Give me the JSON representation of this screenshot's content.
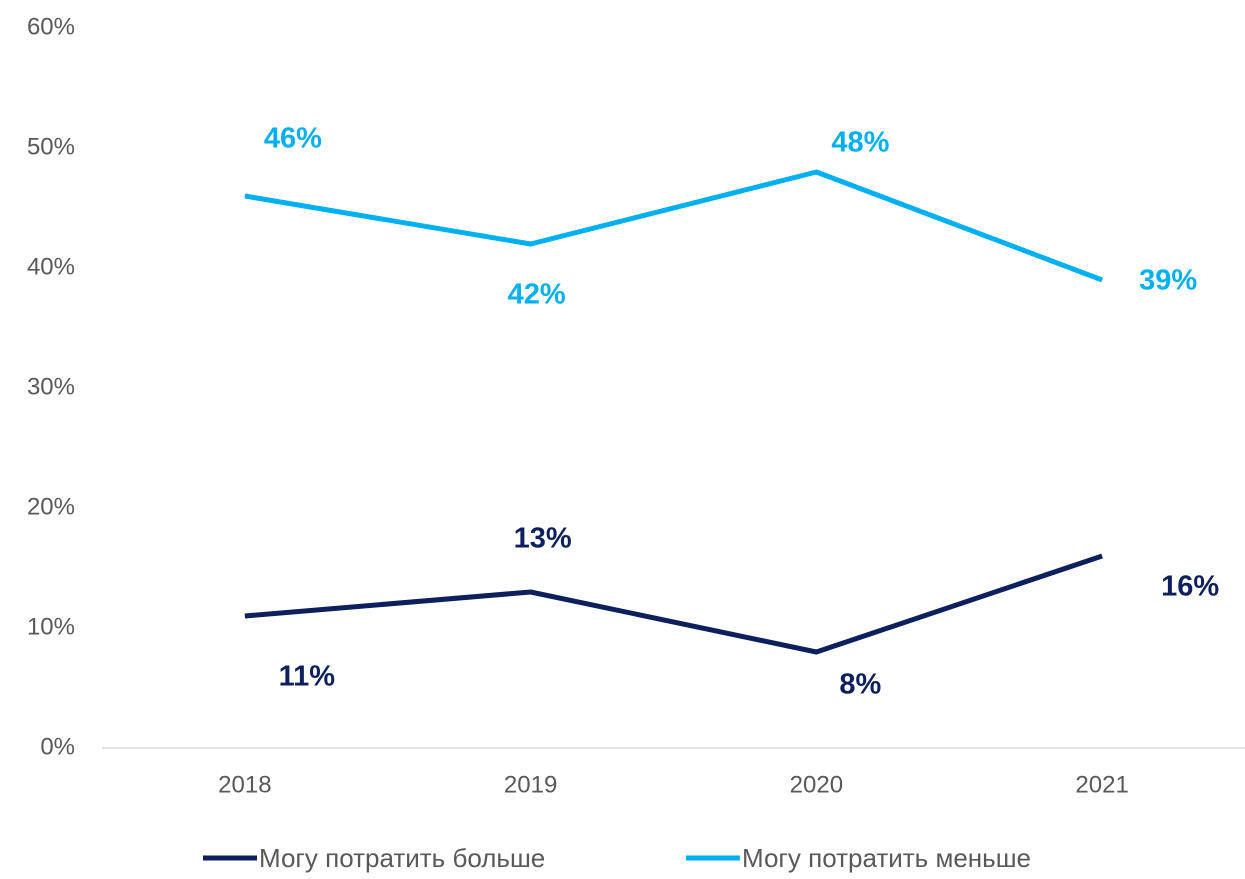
{
  "chart_data": {
    "type": "line",
    "categories": [
      "2018",
      "2019",
      "2020",
      "2021"
    ],
    "series": [
      {
        "name": "Могу потратить больше",
        "color": "#0d1f5c",
        "values": [
          11,
          13,
          8,
          16
        ],
        "value_labels": [
          "11%",
          "13%",
          "8%",
          "16%"
        ]
      },
      {
        "name": "Могу потратить меньше",
        "color": "#00b0f0",
        "values": [
          46,
          42,
          48,
          39
        ],
        "value_labels": [
          "46%",
          "42%",
          "48%",
          "39%"
        ]
      }
    ],
    "ylim": [
      0,
      60
    ],
    "yticks": [
      {
        "value": 0,
        "label": "0%"
      },
      {
        "value": 10,
        "label": "10%"
      },
      {
        "value": 20,
        "label": "20%"
      },
      {
        "value": 30,
        "label": "30%"
      },
      {
        "value": 40,
        "label": "40%"
      },
      {
        "value": 50,
        "label": "50%"
      },
      {
        "value": 60,
        "label": "60%"
      }
    ],
    "grid": false,
    "legend": "bottom"
  }
}
